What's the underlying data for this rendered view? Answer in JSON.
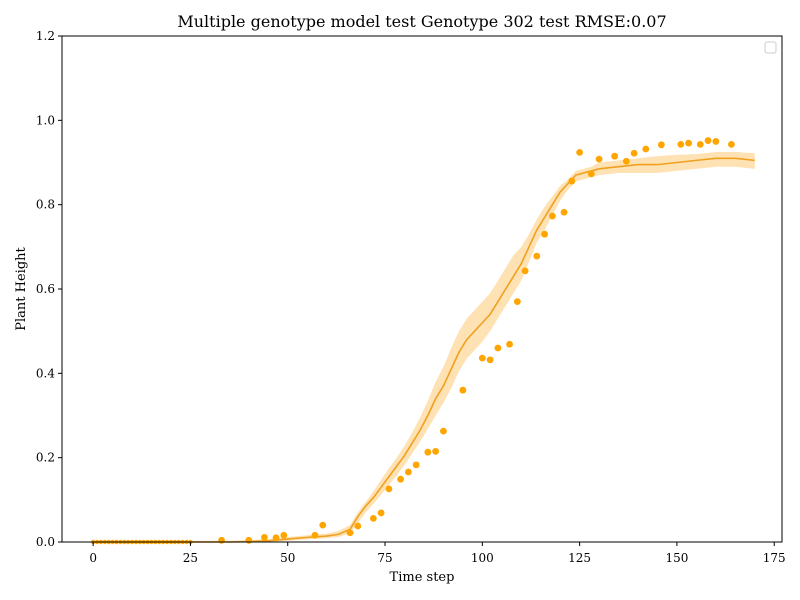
{
  "chart_data": {
    "type": "line",
    "title": "Multiple genotype model test Genotype 302 test RMSE:0.07",
    "xlabel": "Time step",
    "ylabel": "Plant Height",
    "xlim": [
      -8,
      177
    ],
    "ylim": [
      0.0,
      1.2
    ],
    "x_ticks": [
      0,
      25,
      50,
      75,
      100,
      125,
      150,
      175
    ],
    "y_ticks": [
      0.0,
      0.2,
      0.4,
      0.6,
      0.8,
      1.0,
      1.2
    ],
    "x_tick_labels": [
      "0",
      "25",
      "50",
      "75",
      "100",
      "125",
      "150",
      "175"
    ],
    "y_tick_labels": [
      "0.0",
      "0.2",
      "0.4",
      "0.6",
      "0.8",
      "1.0",
      "1.2"
    ],
    "grid": false,
    "legend_position": "top-right",
    "colors": {
      "line": "#f0a020",
      "band": "#ffd89a",
      "points": "#ffa500"
    },
    "series": [
      {
        "type": "line_with_band",
        "x": [
          0,
          5,
          10,
          15,
          20,
          25,
          30,
          35,
          40,
          45,
          50,
          55,
          60,
          63,
          66,
          68,
          70,
          72,
          74,
          76,
          78,
          80,
          82,
          84,
          86,
          88,
          90,
          92,
          94,
          96,
          98,
          100,
          102,
          104,
          106,
          108,
          110,
          112,
          114,
          116,
          118,
          120,
          122,
          124,
          126,
          128,
          130,
          135,
          140,
          145,
          150,
          155,
          160,
          165,
          170
        ],
        "y": [
          0.0,
          0.0,
          0.0,
          0.0,
          0.0,
          0.0,
          0.0,
          0.0,
          0.001,
          0.003,
          0.007,
          0.011,
          0.014,
          0.018,
          0.03,
          0.06,
          0.085,
          0.105,
          0.13,
          0.155,
          0.18,
          0.205,
          0.235,
          0.265,
          0.3,
          0.34,
          0.37,
          0.41,
          0.45,
          0.48,
          0.5,
          0.52,
          0.54,
          0.57,
          0.6,
          0.63,
          0.66,
          0.7,
          0.74,
          0.77,
          0.8,
          0.83,
          0.85,
          0.87,
          0.875,
          0.88,
          0.885,
          0.89,
          0.895,
          0.895,
          0.9,
          0.905,
          0.91,
          0.91,
          0.905
        ],
        "upper": [
          0.003,
          0.003,
          0.003,
          0.003,
          0.003,
          0.003,
          0.003,
          0.003,
          0.004,
          0.007,
          0.012,
          0.016,
          0.02,
          0.026,
          0.04,
          0.07,
          0.095,
          0.12,
          0.148,
          0.175,
          0.2,
          0.228,
          0.26,
          0.295,
          0.335,
          0.38,
          0.415,
          0.46,
          0.5,
          0.53,
          0.55,
          0.57,
          0.59,
          0.62,
          0.65,
          0.68,
          0.7,
          0.73,
          0.765,
          0.795,
          0.82,
          0.845,
          0.86,
          0.88,
          0.885,
          0.89,
          0.9,
          0.905,
          0.91,
          0.915,
          0.918,
          0.92,
          0.925,
          0.925,
          0.922
        ],
        "lower": [
          0.0,
          0.0,
          0.0,
          0.0,
          0.0,
          0.0,
          0.0,
          0.0,
          0.0,
          0.0,
          0.003,
          0.006,
          0.009,
          0.012,
          0.02,
          0.045,
          0.07,
          0.09,
          0.112,
          0.135,
          0.158,
          0.182,
          0.21,
          0.238,
          0.268,
          0.3,
          0.33,
          0.365,
          0.405,
          0.435,
          0.455,
          0.475,
          0.5,
          0.53,
          0.56,
          0.59,
          0.62,
          0.665,
          0.71,
          0.74,
          0.775,
          0.81,
          0.835,
          0.855,
          0.86,
          0.865,
          0.87,
          0.875,
          0.875,
          0.875,
          0.88,
          0.885,
          0.89,
          0.89,
          0.885
        ]
      },
      {
        "type": "scatter",
        "x": [
          0,
          1,
          2,
          3,
          4,
          5,
          6,
          7,
          8,
          9,
          10,
          11,
          12,
          13,
          14,
          15,
          16,
          17,
          18,
          19,
          20,
          21,
          22,
          23,
          24,
          25,
          33,
          40,
          44,
          47,
          49,
          57,
          59,
          66,
          68,
          72,
          74,
          76,
          79,
          81,
          83,
          86,
          88,
          90,
          95,
          100,
          102,
          104,
          107,
          109,
          111,
          114,
          116,
          118,
          121,
          123,
          125,
          128,
          130,
          134,
          137,
          139,
          142,
          146,
          151,
          153,
          156,
          158,
          160,
          164
        ],
        "y": [
          0.0,
          0.0,
          0.0,
          0.0,
          0.0,
          0.0,
          0.0,
          0.0,
          0.0,
          0.0,
          0.0,
          0.0,
          0.0,
          0.0,
          0.0,
          0.0,
          0.0,
          0.0,
          0.0,
          0.0,
          0.0,
          0.0,
          0.0,
          0.0,
          0.0,
          0.0,
          0.004,
          0.004,
          0.011,
          0.01,
          0.016,
          0.016,
          0.04,
          0.022,
          0.038,
          0.056,
          0.069,
          0.126,
          0.149,
          0.166,
          0.183,
          0.213,
          0.215,
          0.263,
          0.36,
          0.436,
          0.432,
          0.46,
          0.469,
          0.57,
          0.643,
          0.678,
          0.73,
          0.773,
          0.782,
          0.856,
          0.924,
          0.873,
          0.908,
          0.915,
          0.903,
          0.922,
          0.932,
          0.942,
          0.943,
          0.946,
          0.943,
          0.952,
          0.95,
          0.943
        ]
      }
    ]
  }
}
